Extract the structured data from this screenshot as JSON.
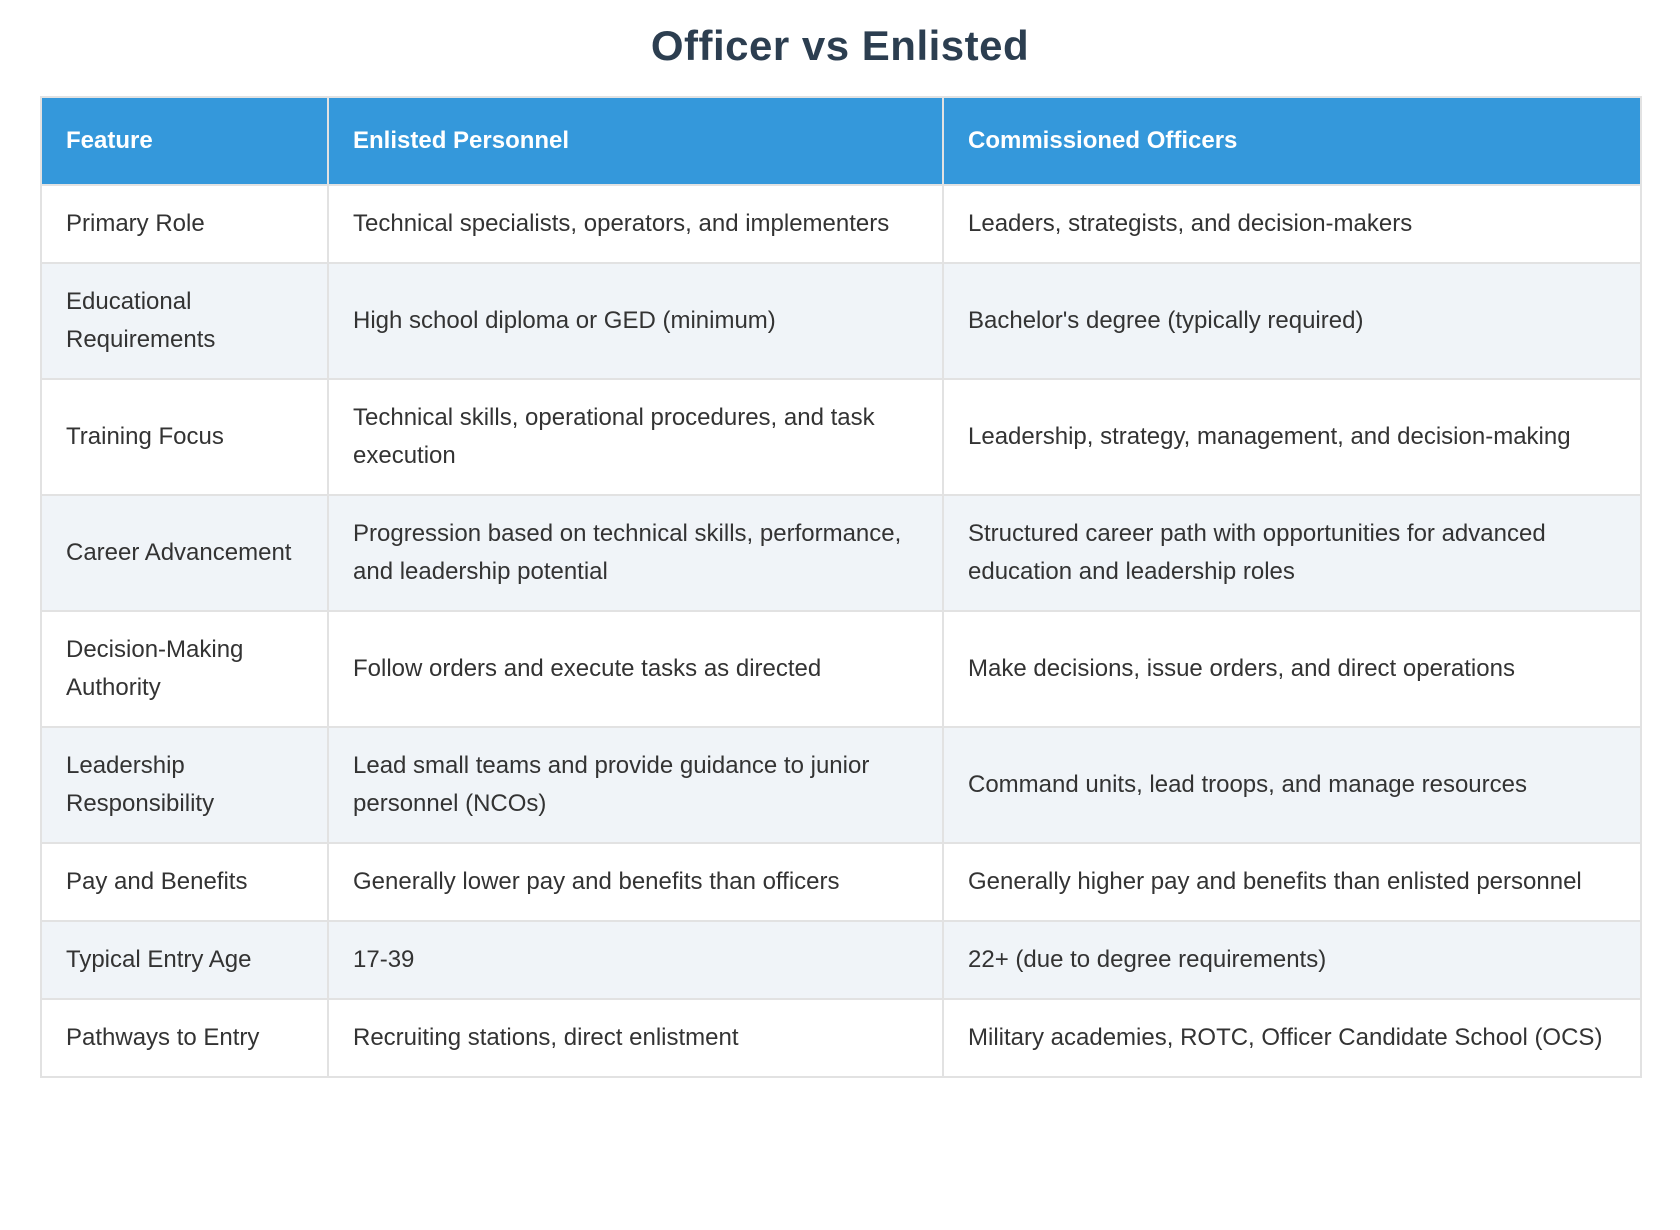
{
  "page": {
    "title": "Officer vs Enlisted"
  },
  "colors": {
    "header_bg": "#3498db",
    "header_text": "#ffffff",
    "title_text": "#2c3e50",
    "body_text": "#333333",
    "row_bg": "#ffffff",
    "row_alt_bg": "#f0f4f8",
    "border": "#e2e2e2"
  },
  "table": {
    "columns": [
      "Feature",
      "Enlisted Personnel",
      "Commissioned Officers"
    ],
    "rows": [
      {
        "feature": "Primary Role",
        "enlisted": "Technical specialists, operators, and implementers",
        "officers": "Leaders, strategists, and decision-makers"
      },
      {
        "feature": "Educational Requirements",
        "enlisted": "High school diploma or GED (minimum)",
        "officers": "Bachelor's degree (typically required)"
      },
      {
        "feature": "Training Focus",
        "enlisted": "Technical skills, operational procedures, and task execution",
        "officers": "Leadership, strategy, management, and decision-making"
      },
      {
        "feature": "Career Advancement",
        "enlisted": "Progression based on technical skills, performance, and leadership potential",
        "officers": "Structured career path with opportunities for advanced education and leadership roles"
      },
      {
        "feature": "Decision-Making Authority",
        "enlisted": "Follow orders and execute tasks as directed",
        "officers": "Make decisions, issue orders, and direct operations"
      },
      {
        "feature": "Leadership Responsibility",
        "enlisted": "Lead small teams and provide guidance to junior personnel (NCOs)",
        "officers": "Command units, lead troops, and manage resources"
      },
      {
        "feature": "Pay and Benefits",
        "enlisted": "Generally lower pay and benefits than officers",
        "officers": "Generally higher pay and benefits than enlisted personnel"
      },
      {
        "feature": "Typical Entry Age",
        "enlisted": "17-39",
        "officers": "22+ (due to degree requirements)"
      },
      {
        "feature": "Pathways to Entry",
        "enlisted": "Recruiting stations, direct enlistment",
        "officers": "Military academies, ROTC, Officer Candidate School (OCS)"
      }
    ]
  }
}
